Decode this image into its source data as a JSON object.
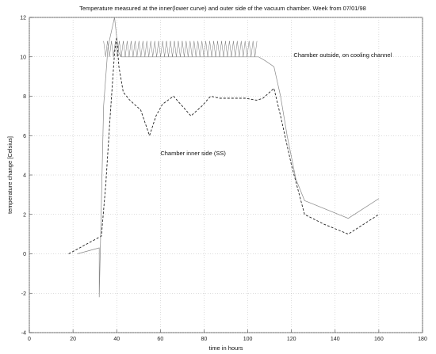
{
  "chart_data": {
    "type": "line",
    "title": "Temperature measured at the inner(lower curve) and outer side of the vacuum chamber. Week from 07/01/98",
    "xlabel": "time in hours",
    "ylabel": "temperature change [Celsius]",
    "xlim": [
      0,
      180
    ],
    "ylim": [
      -4,
      12
    ],
    "xticks": [
      0,
      20,
      40,
      60,
      80,
      100,
      120,
      140,
      160,
      180
    ],
    "yticks": [
      -4,
      -2,
      0,
      2,
      4,
      6,
      8,
      10,
      12
    ],
    "grid": true,
    "annotations": [
      {
        "text": "Chamber outside, on cooling channel",
        "x": 121,
        "y": 10
      },
      {
        "text": "Chamber inner side (SS)",
        "x": 60,
        "y": 5
      }
    ],
    "series": [
      {
        "name": "Chamber inner side (SS)",
        "style": "dashed",
        "x": [
          18,
          33,
          35,
          37,
          39,
          40,
          41,
          43,
          46,
          51,
          55,
          58,
          61,
          66,
          70,
          74,
          79,
          83,
          87,
          93,
          99,
          104,
          107,
          110,
          112,
          115,
          120,
          126,
          135,
          146,
          160
        ],
        "y": [
          0.0,
          0.9,
          3.5,
          7.0,
          10.2,
          11.0,
          9.5,
          8.2,
          7.8,
          7.3,
          6.0,
          7.0,
          7.6,
          8.0,
          7.5,
          7.0,
          7.5,
          8.0,
          7.9,
          7.9,
          7.9,
          7.8,
          7.9,
          8.2,
          8.4,
          7.0,
          4.5,
          2.0,
          1.5,
          1.0,
          2.0
        ]
      },
      {
        "name": "Chamber outside, on cooling channel",
        "style": "solid",
        "x": [
          22,
          32,
          32,
          34,
          36,
          38,
          39,
          40,
          41,
          42,
          105,
          108,
          112,
          115,
          118,
          122,
          126,
          146,
          160
        ],
        "y": [
          0.0,
          0.3,
          -2.2,
          7.5,
          10.5,
          11.5,
          12.0,
          11.0,
          10.2,
          10.0,
          10.0,
          9.8,
          9.5,
          8.0,
          6.0,
          3.8,
          2.7,
          1.8,
          2.8
        ]
      },
      {
        "name": "Chamber outside oscillation band",
        "style": "oscillating",
        "x_start": 34,
        "x_end": 105,
        "low": 10.0,
        "high": 10.8,
        "step": 0.9
      }
    ]
  }
}
